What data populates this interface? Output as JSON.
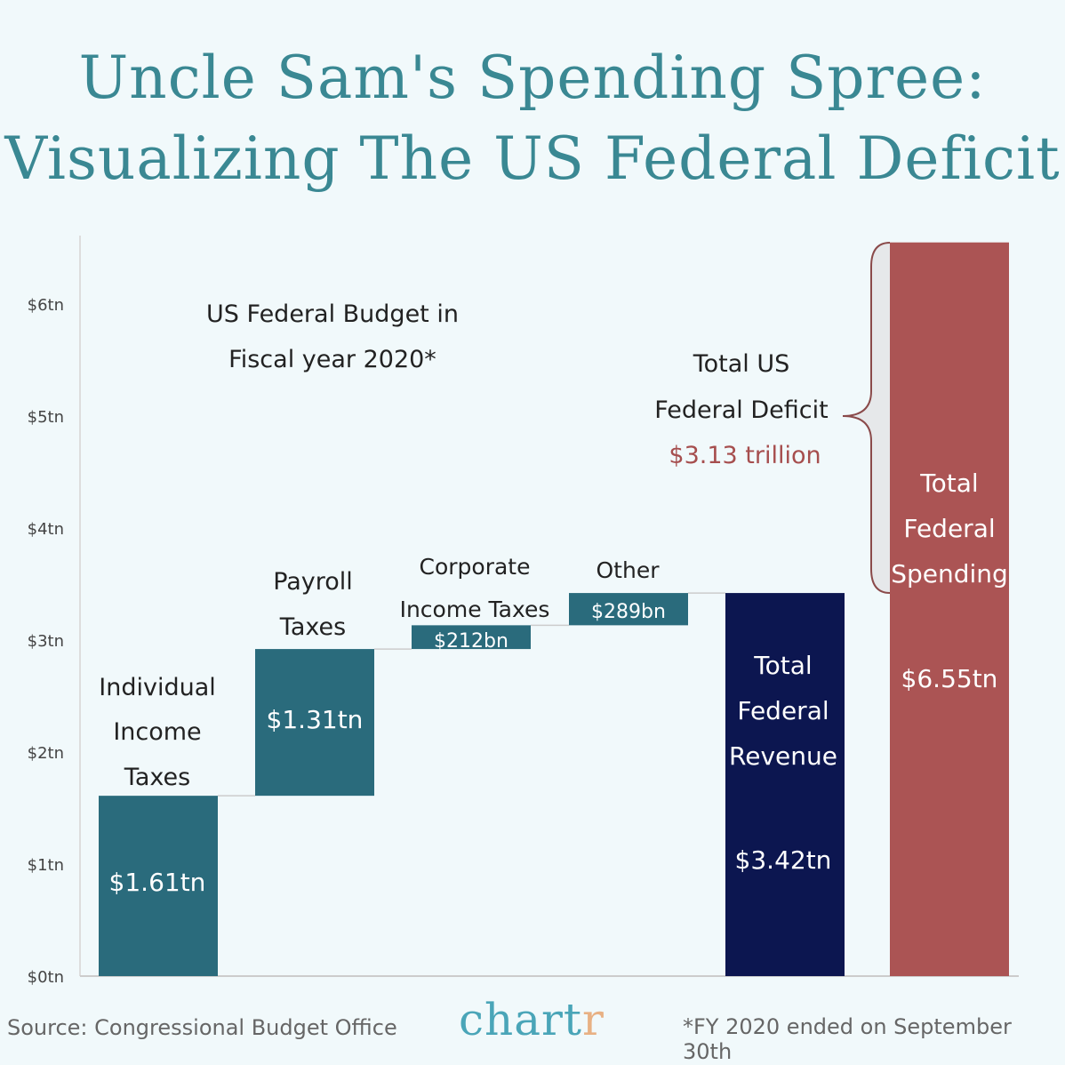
{
  "title_line1": "Uncle Sam's Spending Spree:",
  "title_line2": "Visualizing The US Federal Deficit",
  "colors": {
    "background": "#f1f9fb",
    "title": "#3a8893",
    "revenue_items": "#2a6b7c",
    "total_revenue": "#0c1650",
    "total_spending": "#ab5454",
    "deficit_text": "#a64e4e"
  },
  "chart_data": {
    "type": "waterfall",
    "title": "US Federal Budget in Fiscal year 2020*",
    "title_lines": [
      "US Federal Budget in",
      "Fiscal year 2020*"
    ],
    "unit": "trillion USD",
    "ylim": [
      0,
      6.6
    ],
    "y_ticks": [
      0,
      1,
      2,
      3,
      4,
      5,
      6
    ],
    "y_tick_labels": [
      "$0tn",
      "$1tn",
      "$2tn",
      "$3tn",
      "$4tn",
      "$5tn",
      "$6tn"
    ],
    "grid": false,
    "bars": [
      {
        "category": "Individual Income Taxes",
        "label_lines": [
          "Individual",
          "Income",
          "Taxes"
        ],
        "start": 0,
        "end": 1.61,
        "value_label": "$1.61tn",
        "color": "#2a6b7c"
      },
      {
        "category": "Payroll Taxes",
        "label_lines": [
          "Payroll",
          "Taxes"
        ],
        "start": 1.61,
        "end": 2.92,
        "value_label": "$1.31tn",
        "color": "#2a6b7c"
      },
      {
        "category": "Corporate Income Taxes",
        "label_lines": [
          "Corporate",
          "Income Taxes"
        ],
        "start": 2.92,
        "end": 3.132,
        "value_label": "$212bn",
        "color": "#2a6b7c"
      },
      {
        "category": "Other",
        "label_lines": [
          "Other"
        ],
        "start": 3.132,
        "end": 3.42,
        "value_label": "$289bn",
        "color": "#2a6b7c"
      },
      {
        "category": "Total Federal Revenue",
        "label_lines": [
          "Total",
          "Federal",
          "Revenue"
        ],
        "start": 0,
        "end": 3.42,
        "value_label": "$3.42tn",
        "color": "#0c1650"
      },
      {
        "category": "Total Federal Spending",
        "label_lines": [
          "Total",
          "Federal",
          "Spending"
        ],
        "start": 0,
        "end": 6.55,
        "value_label": "$6.55tn",
        "color": "#ab5454"
      }
    ],
    "annotation": {
      "lines": [
        "Total US",
        "Federal Deficit"
      ],
      "value": "$3.13 trillion",
      "range": [
        3.42,
        6.55
      ]
    }
  },
  "footer": {
    "source": "Source: Congressional Budget Office",
    "logo": "chartr",
    "note": "*FY 2020 ended on September 30th"
  }
}
